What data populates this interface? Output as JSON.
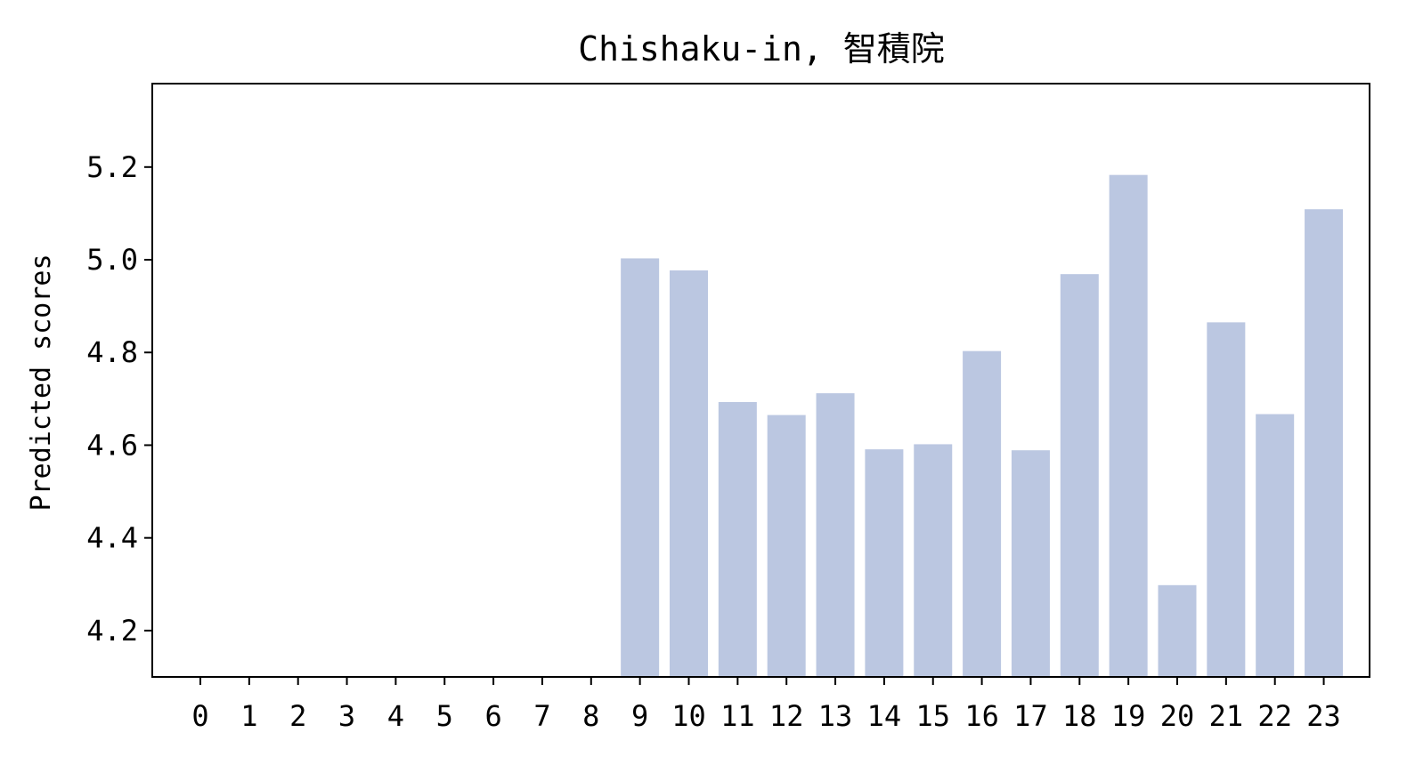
{
  "chart_data": {
    "type": "bar",
    "title": "Chishaku-in, 智積院",
    "xlabel": "",
    "ylabel": "Predicted scores",
    "categories": [
      "0",
      "1",
      "2",
      "3",
      "4",
      "5",
      "6",
      "7",
      "8",
      "9",
      "10",
      "11",
      "12",
      "13",
      "14",
      "15",
      "16",
      "17",
      "18",
      "19",
      "20",
      "21",
      "22",
      "23"
    ],
    "values": [
      null,
      null,
      null,
      null,
      null,
      null,
      null,
      null,
      null,
      5.003,
      4.977,
      4.693,
      4.665,
      4.712,
      4.591,
      4.602,
      4.803,
      4.589,
      4.969,
      5.183,
      4.298,
      4.865,
      4.667,
      5.109
    ],
    "ylim": [
      4.1,
      5.38
    ],
    "yticks": [
      "4.2",
      "4.4",
      "4.6",
      "4.8",
      "5.0",
      "5.2"
    ],
    "grid": false,
    "bar_color": "#bbc7e1"
  }
}
